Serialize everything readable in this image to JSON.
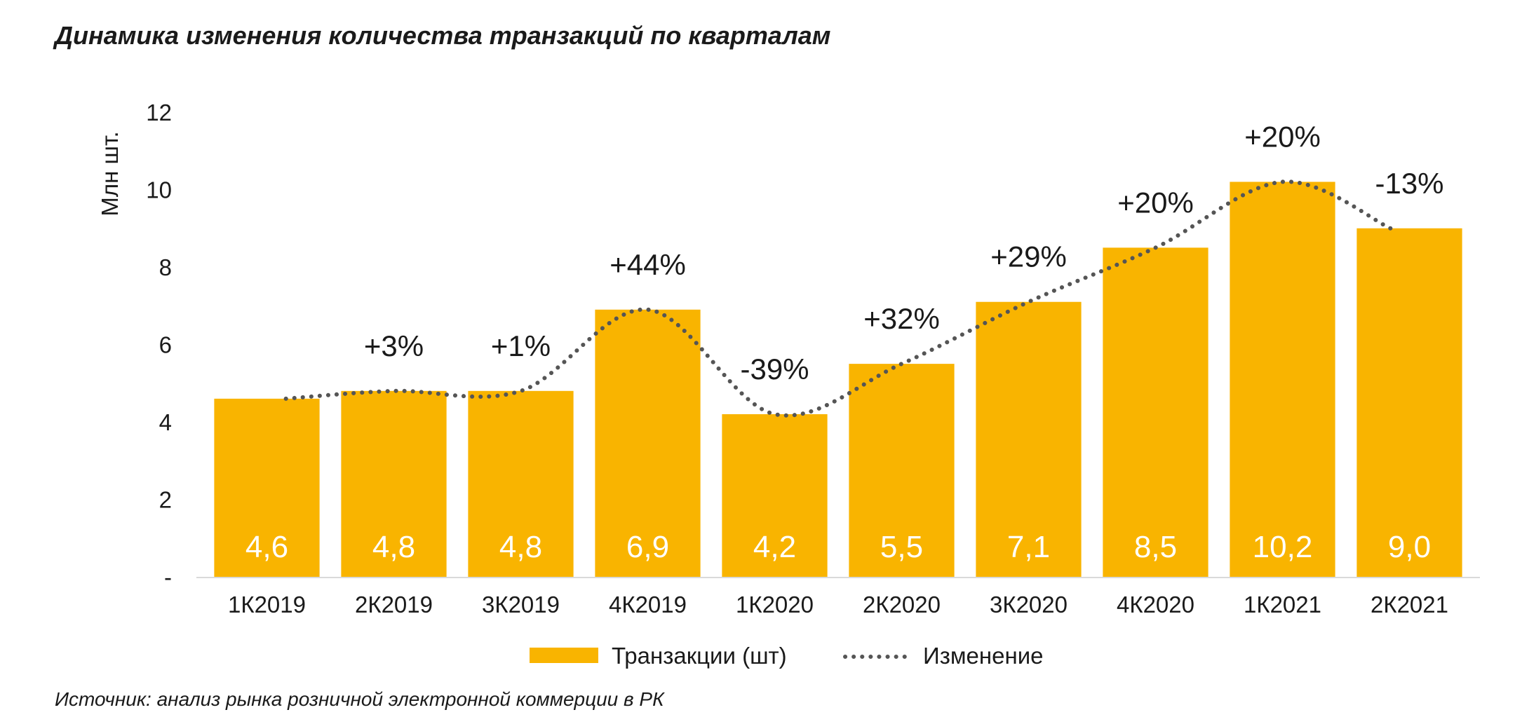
{
  "title": "Динамика изменения количества транзакций по кварталам",
  "source": "Источник: анализ рынка розничной электронной коммерции в РК",
  "colors": {
    "bar": "#F9B400",
    "line": "#555555",
    "value_label": "#ffffff",
    "axis": "#d9d9d9"
  },
  "chart_data": {
    "type": "bar",
    "title": "Динамика изменения количества транзакций по кварталам",
    "ylabel": "Млн шт.",
    "xlabel": "",
    "ylim": [
      0,
      12
    ],
    "y_ticks": [
      {
        "value": 0,
        "label": "-"
      },
      {
        "value": 2,
        "label": "2"
      },
      {
        "value": 4,
        "label": "4"
      },
      {
        "value": 6,
        "label": "6"
      },
      {
        "value": 8,
        "label": "8"
      },
      {
        "value": 10,
        "label": "10"
      },
      {
        "value": 12,
        "label": "12"
      }
    ],
    "categories": [
      "1К2019",
      "2К2019",
      "3К2019",
      "4К2019",
      "1К2020",
      "2К2020",
      "3К2020",
      "4К2020",
      "1К2021",
      "2К2021"
    ],
    "series": [
      {
        "name": "Транзакции (шт)",
        "kind": "bar",
        "values": [
          4.6,
          4.8,
          4.8,
          6.9,
          4.2,
          5.5,
          7.1,
          8.5,
          10.2,
          9.0
        ],
        "labels": [
          "4,6",
          "4,8",
          "4,8",
          "6,9",
          "4,2",
          "5,5",
          "7,1",
          "8,5",
          "10,2",
          "9,0"
        ]
      },
      {
        "name": "Изменение",
        "kind": "dotted-line",
        "values": [
          4.6,
          4.8,
          4.8,
          6.9,
          4.2,
          5.5,
          7.1,
          8.5,
          10.2,
          9.0
        ],
        "labels": [
          "",
          "+3%",
          "+1%",
          "+44%",
          "-39%",
          "+32%",
          "+29%",
          "+20%",
          "+20%",
          "-13%"
        ]
      }
    ],
    "grid": false,
    "legend_position": "bottom"
  }
}
